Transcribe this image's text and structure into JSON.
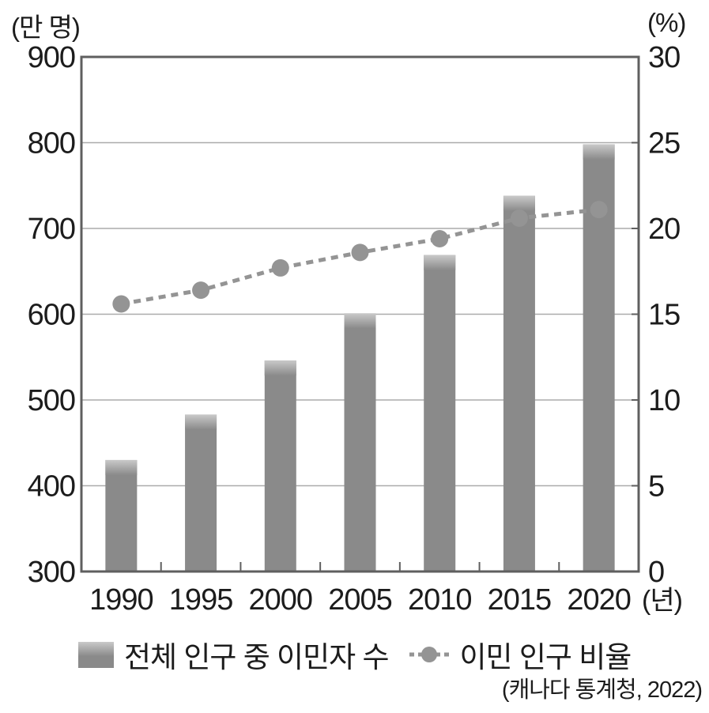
{
  "labels": {
    "left_unit": "(만 명)",
    "right_unit": "(%)",
    "x_unit": "(년)",
    "source": "(캐나다 통계청, 2022)"
  },
  "legend": {
    "bar_label": "전체 인구 중 이민자 수",
    "line_label": "이민 인구 비율"
  },
  "chart_data": {
    "type": "bar",
    "subtype": "combo-bar-line-dual-axis",
    "categories": [
      "1990",
      "1995",
      "2000",
      "2005",
      "2010",
      "2015",
      "2020"
    ],
    "series": [
      {
        "name": "전체 인구 중 이민자 수",
        "type": "bar",
        "axis": "left",
        "values": [
          430,
          483,
          546,
          601,
          669,
          738,
          798
        ]
      },
      {
        "name": "이민 인구 비율",
        "type": "line",
        "axis": "right",
        "values": [
          15.6,
          16.4,
          17.7,
          18.6,
          19.4,
          20.6,
          21.1
        ]
      }
    ],
    "title": "",
    "xlabel": "(년)",
    "left_axis": {
      "label": "(만 명)",
      "min": 300,
      "max": 900,
      "step": 100,
      "ticks": [
        900,
        800,
        700,
        600,
        500,
        400,
        300
      ]
    },
    "right_axis": {
      "label": "(%)",
      "min": 0,
      "max": 30,
      "step": 5,
      "ticks": [
        30,
        25,
        20,
        15,
        10,
        5,
        0
      ]
    },
    "grid": true,
    "legend_position": "bottom",
    "source": "(캐나다 통계청, 2022)",
    "colors": {
      "bar": "#8a8a8a",
      "bar_top_highlight": "#c9c9c9",
      "line": "#949494",
      "dot": "#949494",
      "gridline": "#ababab",
      "axis_border": "#5f5f5f",
      "text": "#1c1c1c"
    }
  }
}
